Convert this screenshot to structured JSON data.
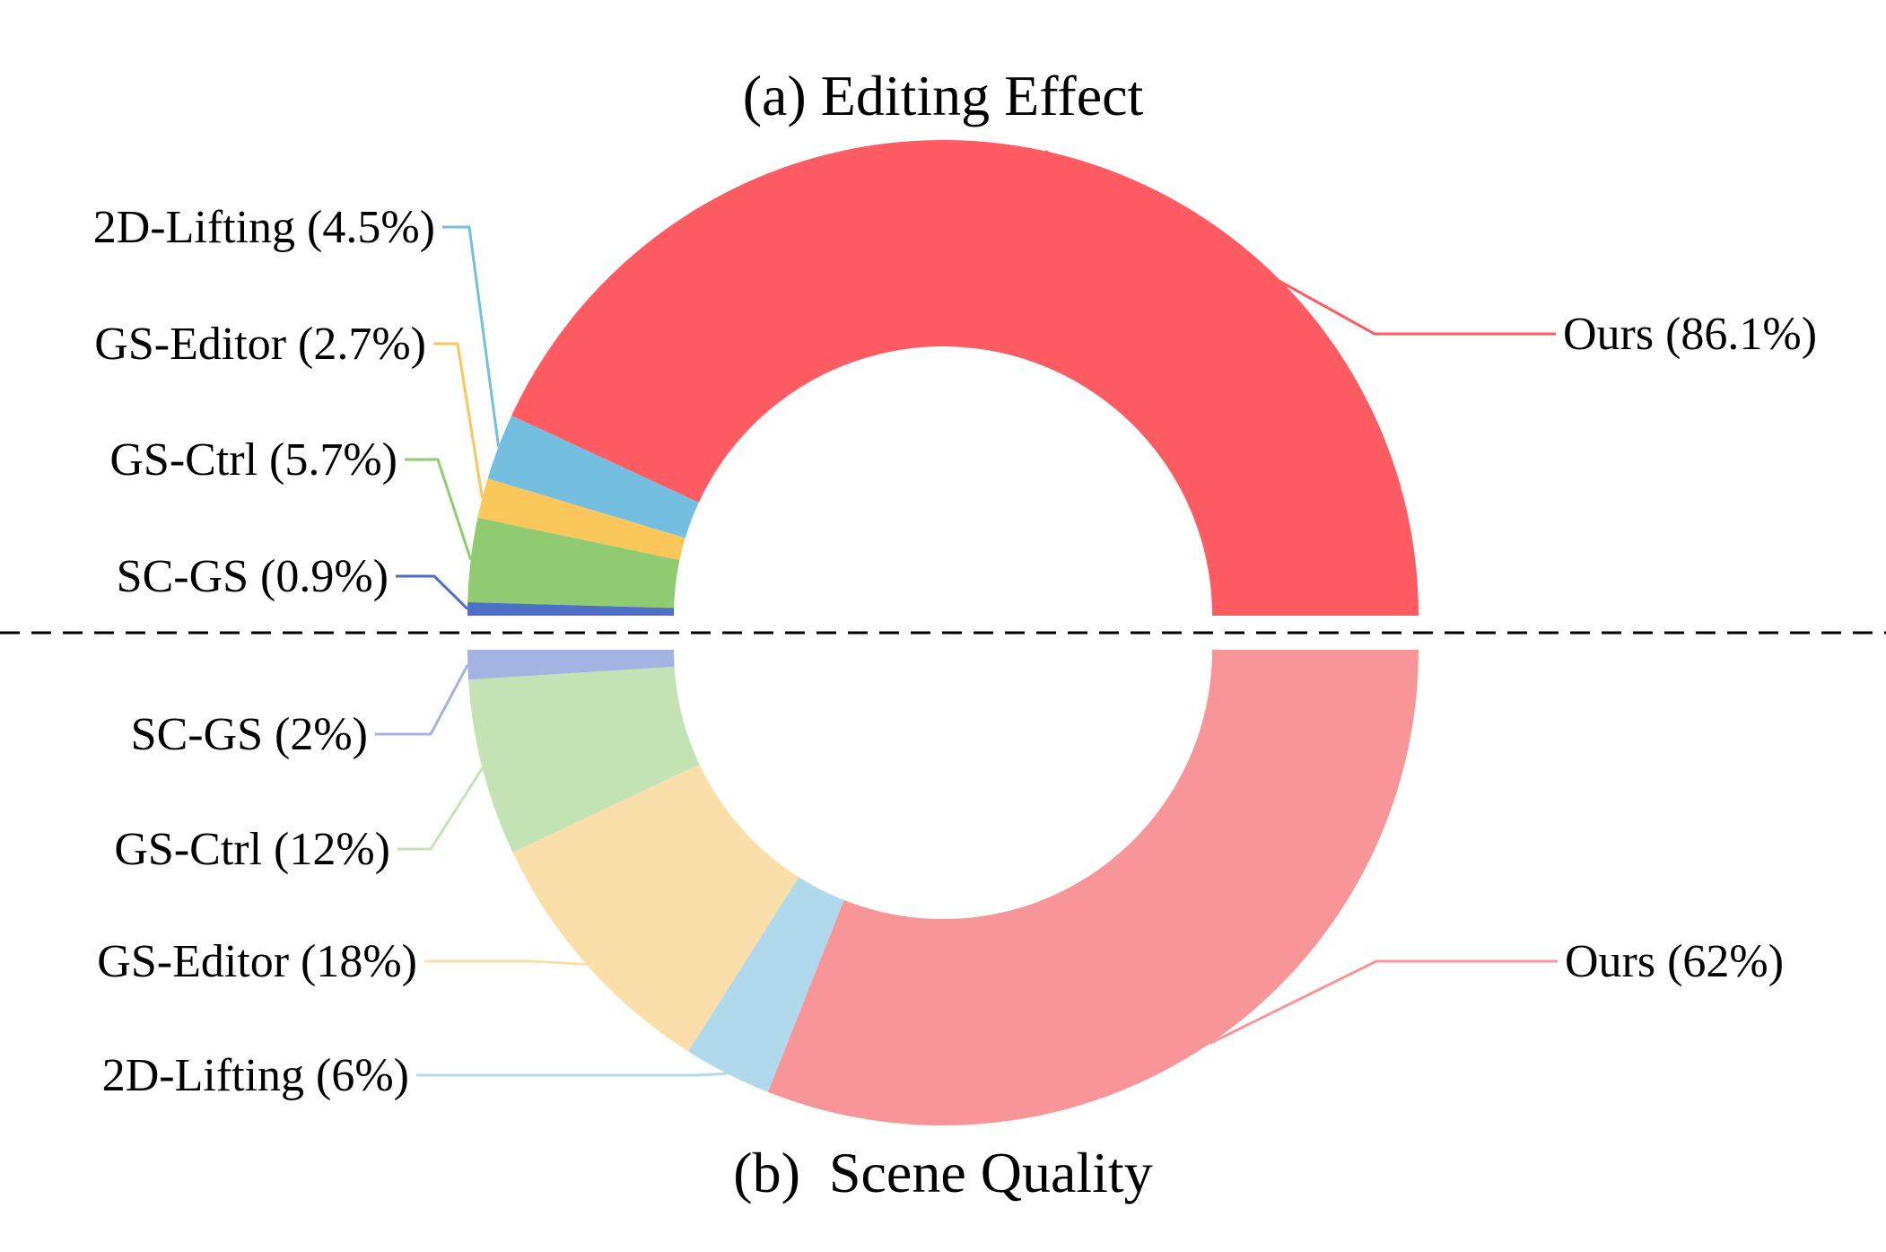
{
  "chart_data": [
    {
      "type": "pie",
      "variant": "semi-donut",
      "title": "(a) Editing Effect",
      "legend": "none",
      "slices": [
        {
          "name": "Ours",
          "label": "Ours (86.1%)",
          "value": 86.1,
          "color": "#fe5b62"
        },
        {
          "name": "2D-Lifting",
          "label": "2D-Lifting (4.5%)",
          "value": 4.5,
          "color": "#74bfdf"
        },
        {
          "name": "GS-Editor",
          "label": "GS-Editor (2.7%)",
          "value": 2.7,
          "color": "#fcc75a"
        },
        {
          "name": "GS-Ctrl",
          "label": "GS-Ctrl (5.7%)",
          "value": 5.7,
          "color": "#90cb72"
        },
        {
          "name": "SC-GS",
          "label": "SC-GS (0.9%)",
          "value": 0.9,
          "color": "#4f6fc6"
        }
      ]
    },
    {
      "type": "pie",
      "variant": "semi-donut",
      "title": "(b)  Scene Quality",
      "legend": "none",
      "slices": [
        {
          "name": "Ours",
          "label": "Ours (62%)",
          "value": 62,
          "color": "#f89598"
        },
        {
          "name": "2D-Lifting",
          "label": "2D-Lifting (6%)",
          "value": 6,
          "color": "#b0d9eb"
        },
        {
          "name": "GS-Editor",
          "label": "GS-Editor (18%)",
          "value": 18,
          "color": "#fbdfab"
        },
        {
          "name": "GS-Ctrl",
          "label": "GS-Ctrl (12%)",
          "value": 12,
          "color": "#c4e3b5"
        },
        {
          "name": "SC-GS",
          "label": "SC-GS (2%)",
          "value": 2,
          "color": "#a5b3e2"
        }
      ]
    }
  ]
}
